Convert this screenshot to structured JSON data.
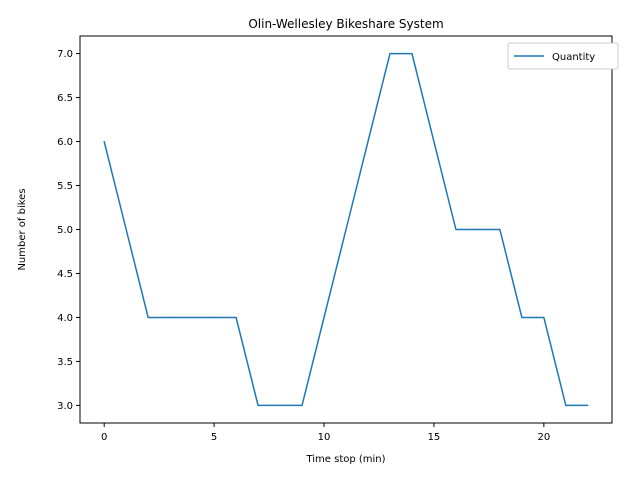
{
  "chart_data": {
    "type": "line",
    "title": "Olin-Wellesley Bikeshare System",
    "xlabel": "Time stop (min)",
    "ylabel": "Number of bikes",
    "xlim": [
      -1.1,
      23.1
    ],
    "ylim": [
      2.8,
      7.2
    ],
    "x_ticks": [
      0,
      5,
      10,
      15,
      20
    ],
    "y_ticks": [
      3.0,
      3.5,
      4.0,
      4.5,
      5.0,
      5.5,
      6.0,
      6.5,
      7.0
    ],
    "x_tick_labels": [
      "0",
      "5",
      "10",
      "15",
      "20"
    ],
    "y_tick_labels": [
      "3.0",
      "3.5",
      "4.0",
      "4.5",
      "5.0",
      "5.5",
      "6.0",
      "6.5",
      "7.0"
    ],
    "grid": false,
    "legend_position": "top-right",
    "series": [
      {
        "name": "Quantity",
        "color": "#1f77b4",
        "x": [
          0,
          1,
          2,
          3,
          4,
          5,
          6,
          7,
          8,
          9,
          10,
          11,
          12,
          13,
          14,
          15,
          16,
          17,
          18,
          19,
          20,
          21,
          22
        ],
        "y": [
          6,
          5,
          4,
          4,
          4,
          4,
          4,
          3,
          3,
          3,
          4,
          5,
          6,
          7,
          7,
          6,
          5,
          5,
          5,
          4,
          4,
          3,
          3
        ]
      }
    ]
  }
}
